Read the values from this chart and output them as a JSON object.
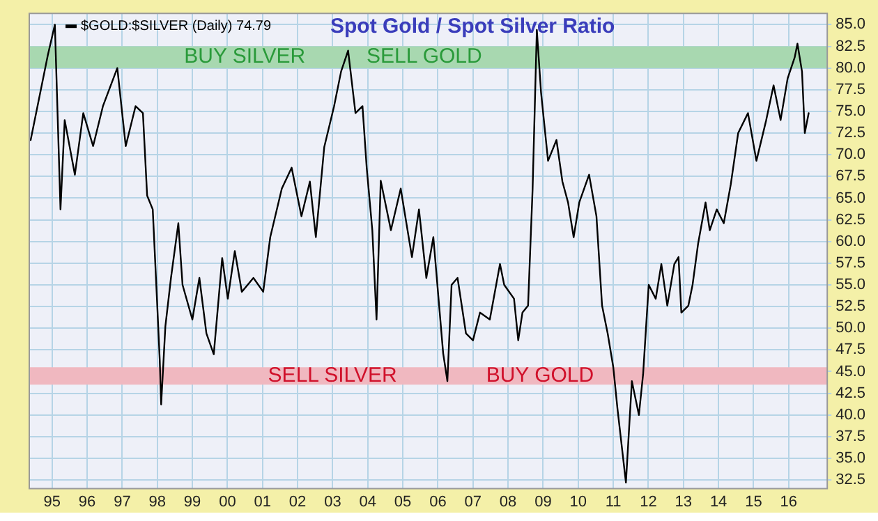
{
  "chart_data": {
    "type": "line",
    "title": "Spot Gold / Spot Silver Ratio",
    "legend": "top left",
    "grid": true,
    "marker": "none",
    "line_style": "solid",
    "xlim": [
      1994.35,
      2017.1
    ],
    "ylim": [
      31.5,
      86.3
    ],
    "xticks": [
      {
        "value": 1995,
        "label": "95"
      },
      {
        "value": 1996,
        "label": "96"
      },
      {
        "value": 1997,
        "label": "97"
      },
      {
        "value": 1998,
        "label": "98"
      },
      {
        "value": 1999,
        "label": "99"
      },
      {
        "value": 2000,
        "label": "00"
      },
      {
        "value": 2001,
        "label": "01"
      },
      {
        "value": 2002,
        "label": "02"
      },
      {
        "value": 2003,
        "label": "03"
      },
      {
        "value": 2004,
        "label": "04"
      },
      {
        "value": 2005,
        "label": "05"
      },
      {
        "value": 2006,
        "label": "06"
      },
      {
        "value": 2007,
        "label": "07"
      },
      {
        "value": 2008,
        "label": "08"
      },
      {
        "value": 2009,
        "label": "09"
      },
      {
        "value": 2010,
        "label": "10"
      },
      {
        "value": 2011,
        "label": "11"
      },
      {
        "value": 2012,
        "label": "12"
      },
      {
        "value": 2013,
        "label": "13"
      },
      {
        "value": 2014,
        "label": "14"
      },
      {
        "value": 2015,
        "label": "15"
      },
      {
        "value": 2016,
        "label": "16"
      }
    ],
    "yticks": [
      {
        "value": 32.5,
        "label": "32.5"
      },
      {
        "value": 35,
        "label": "35.0"
      },
      {
        "value": 37.5,
        "label": "37.5"
      },
      {
        "value": 40,
        "label": "40.0"
      },
      {
        "value": 42.5,
        "label": "42.5"
      },
      {
        "value": 45,
        "label": "45.0"
      },
      {
        "value": 47.5,
        "label": "47.5"
      },
      {
        "value": 50,
        "label": "50.0"
      },
      {
        "value": 52.5,
        "label": "52.5"
      },
      {
        "value": 55,
        "label": "55.0"
      },
      {
        "value": 57.5,
        "label": "57.5"
      },
      {
        "value": 60,
        "label": "60.0"
      },
      {
        "value": 62.5,
        "label": "62.5"
      },
      {
        "value": 65,
        "label": "65.0"
      },
      {
        "value": 67.5,
        "label": "67.5"
      },
      {
        "value": 70,
        "label": "70.0"
      },
      {
        "value": 72.5,
        "label": "72.5"
      },
      {
        "value": 75,
        "label": "75.0"
      },
      {
        "value": 77.5,
        "label": "77.5"
      },
      {
        "value": 80,
        "label": "80.0"
      },
      {
        "value": 82.5,
        "label": "82.5"
      },
      {
        "value": 85,
        "label": "85.0"
      }
    ],
    "bands": [
      {
        "axis": "y",
        "from": 80,
        "to": 82.5,
        "color": "#a8d8b0",
        "label": "BUY SILVER"
      },
      {
        "axis": "y",
        "from": 43.5,
        "to": 45.5,
        "color": "#f0b8c0",
        "label": "SELL SILVER"
      }
    ],
    "annotations": [
      "SELL GOLD",
      "BUY GOLD"
    ],
    "series": [
      {
        "name": "$GOLD:$SILVER (Daily) 74.79",
        "color": "#000000",
        "x": [
          1994.39,
          1994.88,
          1995.08,
          1995.24,
          1995.36,
          1995.65,
          1995.89,
          1996.17,
          1996.45,
          1996.86,
          1997.1,
          1997.38,
          1997.59,
          1997.71,
          1997.87,
          1997.99,
          1998.07,
          1998.11,
          1998.23,
          1998.39,
          1998.6,
          1998.72,
          1999.0,
          1999.2,
          1999.4,
          1999.61,
          1999.85,
          2000.01,
          2000.21,
          2000.41,
          2000.74,
          2001.02,
          2001.22,
          2001.55,
          2001.83,
          2002.11,
          2002.35,
          2002.52,
          2002.76,
          2003.04,
          2003.24,
          2003.44,
          2003.65,
          2003.85,
          2003.97,
          2004.13,
          2004.25,
          2004.37,
          2004.66,
          2004.94,
          2005.26,
          2005.46,
          2005.67,
          2005.87,
          2006.15,
          2006.27,
          2006.39,
          2006.56,
          2006.8,
          2007.0,
          2007.2,
          2007.48,
          2007.77,
          2007.89,
          2008.17,
          2008.29,
          2008.41,
          2008.57,
          2008.7,
          2008.82,
          2008.94,
          2009.14,
          2009.38,
          2009.55,
          2009.71,
          2009.87,
          2010.03,
          2010.31,
          2010.52,
          2010.68,
          2010.84,
          2011.0,
          2011.12,
          2011.36,
          2011.53,
          2011.73,
          2011.85,
          2012.01,
          2012.21,
          2012.37,
          2012.54,
          2012.74,
          2012.86,
          2012.94,
          2013.14,
          2013.26,
          2013.42,
          2013.63,
          2013.75,
          2013.95,
          2014.15,
          2014.35,
          2014.56,
          2014.84,
          2015.08,
          2015.36,
          2015.57,
          2015.77,
          2015.97,
          2016.17,
          2016.25,
          2016.38,
          2016.46,
          2016.57
        ],
        "values": [
          71.7,
          81.5,
          85,
          63.7,
          74,
          67.7,
          74.8,
          71,
          75.6,
          80,
          71,
          75.6,
          74.8,
          65.3,
          63.7,
          53.4,
          46.3,
          41.2,
          50.2,
          55.8,
          62.1,
          55,
          51,
          55.8,
          49.4,
          47,
          58.1,
          53.4,
          58.9,
          54.2,
          55.8,
          54.2,
          60.5,
          66.1,
          68.5,
          62.9,
          66.9,
          60.5,
          70.9,
          75.6,
          79.6,
          82,
          74.8,
          75.6,
          68.5,
          61.3,
          51,
          67,
          61.3,
          66.1,
          58.2,
          63.7,
          55.8,
          60.5,
          47.1,
          43.9,
          55,
          55.8,
          49.4,
          48.6,
          51.8,
          51,
          57.4,
          55,
          53.4,
          48.6,
          51.8,
          52.6,
          66.1,
          84.4,
          77.2,
          69.3,
          71.7,
          66.9,
          64.5,
          60.5,
          64.5,
          67.7,
          62.9,
          52.6,
          49.4,
          45.5,
          40.7,
          32.2,
          43.9,
          40,
          44.7,
          55,
          53.4,
          57.4,
          52.6,
          57.4,
          58.2,
          51.8,
          52.6,
          55,
          59.8,
          64.5,
          61.3,
          63.7,
          62.1,
          66.6,
          72.5,
          74.8,
          69.3,
          74,
          78,
          74,
          78.8,
          81.2,
          82.8,
          79.6,
          72.5,
          74.79
        ]
      }
    ]
  }
}
